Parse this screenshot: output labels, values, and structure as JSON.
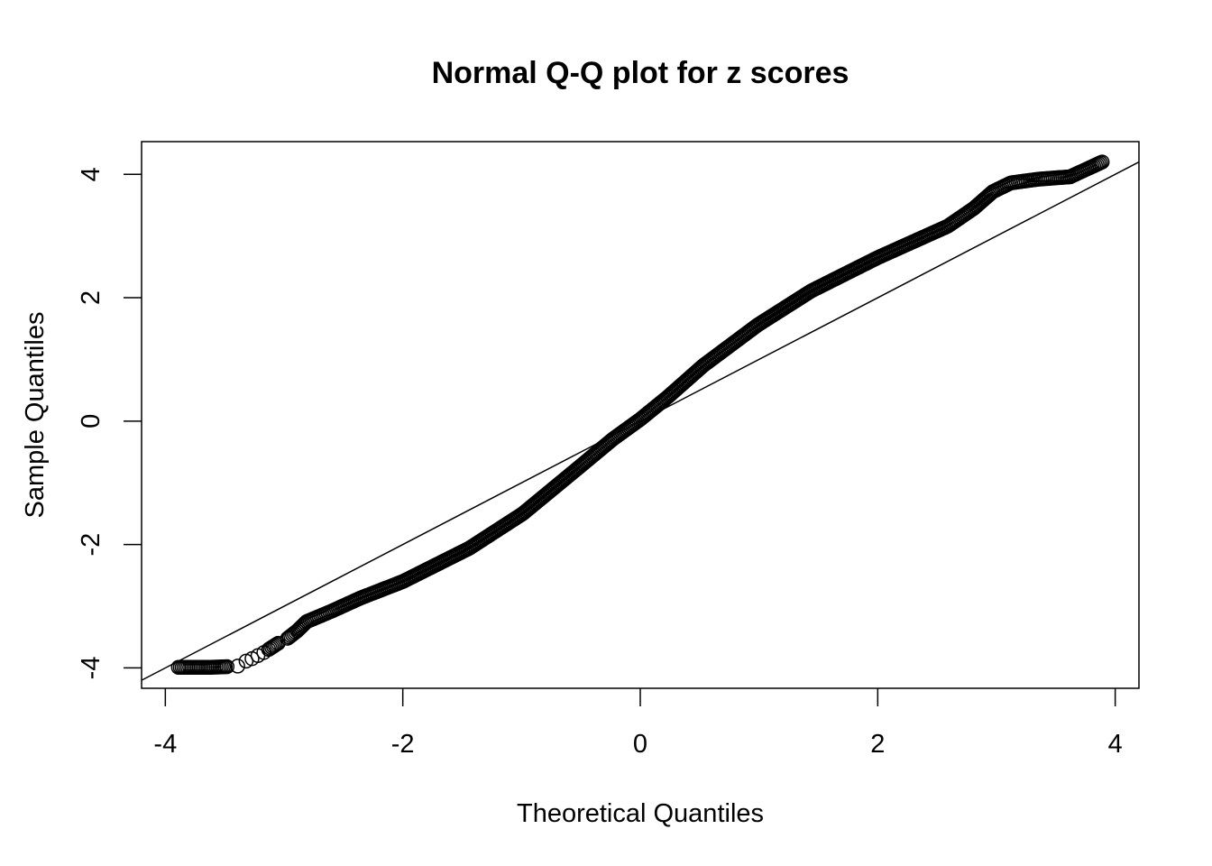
{
  "chart_data": {
    "type": "scatter",
    "title": "Normal Q-Q plot for z scores",
    "xlabel": "Theoretical Quantiles",
    "ylabel": "Sample Quantiles",
    "xlim": [
      -4.2,
      4.2
    ],
    "ylim": [
      -4.33,
      4.53
    ],
    "xticks": [
      "-4",
      "-2",
      "0",
      "2",
      "4"
    ],
    "yticks": [
      "-4",
      "-2",
      "0",
      "2",
      "4"
    ],
    "grid": false,
    "marker": "open-circle",
    "reference_line": {
      "intercept": 0,
      "slope": 1
    },
    "points": [
      [
        -3.89,
        -3.99
      ],
      [
        -3.62,
        -3.99
      ],
      [
        -3.48,
        -3.98
      ],
      [
        -3.39,
        -3.97
      ],
      [
        -3.32,
        -3.89
      ],
      [
        -3.27,
        -3.85
      ],
      [
        -3.22,
        -3.8
      ],
      [
        -3.17,
        -3.75
      ],
      [
        -3.13,
        -3.7
      ],
      [
        -3.05,
        -3.6
      ],
      [
        -2.97,
        -3.52
      ],
      [
        -2.89,
        -3.4
      ],
      [
        -2.81,
        -3.25
      ],
      [
        -2.6,
        -3.08
      ],
      [
        -2.36,
        -2.87
      ],
      [
        -2.0,
        -2.6
      ],
      [
        -1.44,
        -2.06
      ],
      [
        -0.99,
        -1.5
      ],
      [
        -0.53,
        -0.77
      ],
      [
        -0.23,
        -0.29
      ],
      [
        0,
        0.03
      ],
      [
        0.23,
        0.39
      ],
      [
        0.53,
        0.9
      ],
      [
        0.99,
        1.56
      ],
      [
        1.44,
        2.11
      ],
      [
        2.0,
        2.65
      ],
      [
        2.59,
        3.16
      ],
      [
        2.81,
        3.45
      ],
      [
        2.97,
        3.72
      ],
      [
        3.12,
        3.86
      ],
      [
        3.23,
        3.89
      ],
      [
        3.35,
        3.92
      ],
      [
        3.48,
        3.94
      ],
      [
        3.62,
        3.96
      ],
      [
        3.89,
        4.2
      ]
    ]
  }
}
